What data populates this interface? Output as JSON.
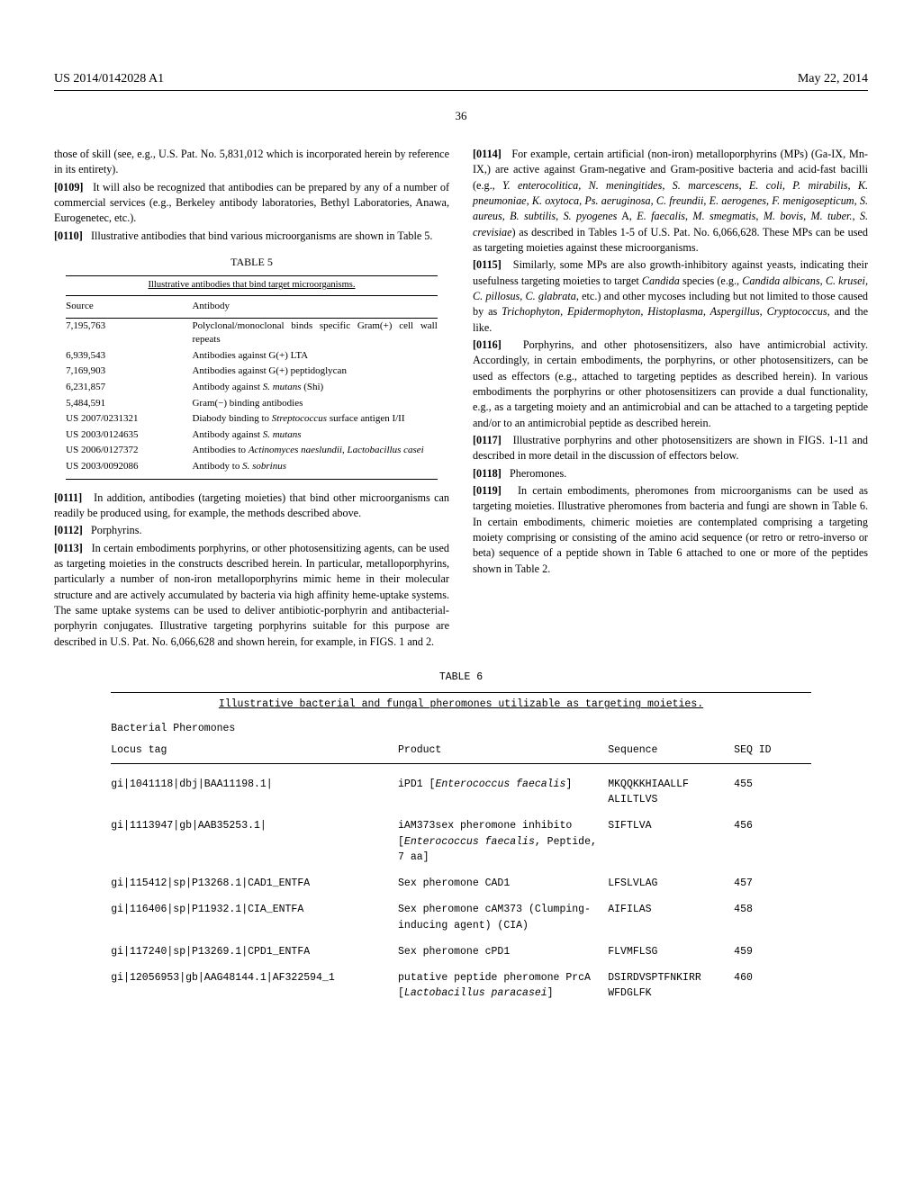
{
  "header": {
    "left": "US 2014/0142028 A1",
    "right": "May 22, 2014"
  },
  "page_number": "36",
  "left_col": {
    "p_intro": "those of skill (see, e.g., U.S. Pat. No. 5,831,012 which is incorporated herein by reference in its entirety).",
    "p0109_num": "[0109]",
    "p0109": "It will also be recognized that antibodies can be prepared by any of a number of commercial services (e.g., Berkeley antibody laboratories, Bethyl Laboratories, Anawa, Eurogenetec, etc.).",
    "p0110_num": "[0110]",
    "p0110": "Illustrative antibodies that bind various microorganisms are shown in Table 5.",
    "table5_caption": "TABLE 5",
    "table5_title": "Illustrative antibodies that bind target microorganisms.",
    "table5_head_c1": "Source",
    "table5_head_c2": "Antibody",
    "table5_rows": [
      {
        "c1": "7,195,763",
        "c2": "Polyclonal/monoclonal binds specific Gram(+) cell wall repeats"
      },
      {
        "c1": "6,939,543",
        "c2": "Antibodies against G(+) LTA"
      },
      {
        "c1": "7,169,903",
        "c2": "Antibodies against G(+) peptidoglycan"
      },
      {
        "c1": "6,231,857",
        "c2": "Antibody against S. mutans (Shi)",
        "italic": "S. mutans"
      },
      {
        "c1": "5,484,591",
        "c2": "Gram(−) binding antibodies"
      },
      {
        "c1": "US 2007/0231321",
        "c2": "Diabody binding to Streptococcus surface antigen I/II",
        "italic": "Streptococcus"
      },
      {
        "c1": "US 2003/0124635",
        "c2": "Antibody against S. mutans",
        "italic": "S. mutans"
      },
      {
        "c1": "US 2006/0127372",
        "c2": "Antibodies to Actinomyces naeslundii, Lactobacillus casei",
        "italic": "Actinomyces naeslundii, Lactobacillus casei"
      },
      {
        "c1": "US 2003/0092086",
        "c2": "Antibody to S. sobrinus",
        "italic": "S. sobrinus"
      }
    ],
    "p0111_num": "[0111]",
    "p0111": "In addition, antibodies (targeting moieties) that bind other microorganisms can readily be produced using, for example, the methods described above.",
    "p0112_num": "[0112]",
    "p0112": "Porphyrins.",
    "p0113_num": "[0113]",
    "p0113": "In certain embodiments porphyrins, or other photosensitizing agents, can be used as targeting moieties in the constructs described herein. In particular, metalloporphyrins, particularly a number of non-iron metalloporphyrins mimic heme in their molecular structure and are actively accumulated by bacteria via high affinity heme-uptake systems. The same uptake systems can be used to deliver antibiotic-porphyrin and antibacterial-porphyrin conjugates. Illustrative targeting porphyrins suitable for this purpose are described in U.S. Pat. No. 6,066,628 and shown herein, for example, in FIGS. 1 and 2."
  },
  "right_col": {
    "p0114_num": "[0114]",
    "p0114_a": "For example, certain artificial (non-iron) metalloporphyrins (MPs) (Ga-IX, Mn-IX,) are active against Gram-negative and Gram-positive bacteria and acid-fast bacilli (e.g., ",
    "p0114_italic": "Y. enterocolitica, N. meningitides, S. marcescens, E. coli, P. mirabilis, K. pneumoniae, K. oxytoca, Ps. aeruginosa, C. freundii, E. aerogenes, F. menigosepticum, S. aureus, B. subtilis, S. pyogenes",
    "p0114_mid": " A, ",
    "p0114_italic2": "E. faecalis, M. smegmatis, M. bovis, M. tuber., S. crevisiae",
    "p0114_b": ") as described in Tables 1-5 of U.S. Pat. No. 6,066,628. These MPs can be used as targeting moieties against these microorganisms.",
    "p0115_num": "[0115]",
    "p0115_a": "Similarly, some MPs are also growth-inhibitory against yeasts, indicating their usefulness targeting moieties to target ",
    "p0115_italic1": "Candida",
    "p0115_mid1": " species (e.g., ",
    "p0115_italic2": "Candida albicans, C. krusei, C. pillosus, C. glabrata",
    "p0115_mid2": ", etc.) and other mycoses including but not limited to those caused by as ",
    "p0115_italic3": "Trichophyton, Epidermophyton, Histoplasma, Aspergillus, Cryptococcus",
    "p0115_b": ", and the like.",
    "p0116_num": "[0116]",
    "p0116": "Porphyrins, and other photosensitizers, also have antimicrobial activity. Accordingly, in certain embodiments, the porphyrins, or other photosensitizers, can be used as effectors (e.g., attached to targeting peptides as described herein). In various embodiments the porphyrins or other photosensitizers can provide a dual functionality, e.g., as a targeting moiety and an antimicrobial and can be attached to a targeting peptide and/or to an antimicrobial peptide as described herein.",
    "p0117_num": "[0117]",
    "p0117": "Illustrative porphyrins and other photosensitizers are shown in FIGS. 1-11 and described in more detail in the discussion of effectors below.",
    "p0118_num": "[0118]",
    "p0118": "Pheromones.",
    "p0119_num": "[0119]",
    "p0119": "In certain embodiments, pheromones from microorganisms can be used as targeting moieties. Illustrative pheromones from bacteria and fungi are shown in Table 6. In certain embodiments, chimeric moieties are contemplated comprising a targeting moiety comprising or consisting of the amino acid sequence (or retro or retro-inverso or beta) sequence of a peptide shown in Table 6 attached to one or more of the peptides shown in Table 2."
  },
  "table6": {
    "caption": "TABLE 6",
    "title": "Illustrative bacterial and fungal pheromones utilizable as targeting moieties.",
    "subhead1": "Bacterial Pheromones",
    "head_c1": "Locus tag",
    "head_c2": "Product",
    "head_c3": "Sequence",
    "head_c4": "SEQ ID",
    "rows": [
      {
        "c1": "gi|1041118|dbj|BAA11198.1|",
        "c2a": "iPD1 [",
        "c2i": "Enterococcus faecalis",
        "c2b": "]",
        "c3": "MKQQKKHIAALLF ALILTLVS",
        "c4": "455"
      },
      {
        "c1": "gi|1113947|gb|AAB35253.1|",
        "c2a": "iAM373sex pheromone inhibito [",
        "c2i": "Enterococcus faecalis",
        "c2b": ", Peptide, 7 aa]",
        "c3": "SIFTLVA",
        "c4": "456"
      },
      {
        "c1": "gi|115412|sp|P13268.1|CAD1_ENTFA",
        "c2a": "Sex pheromone CAD1",
        "c2i": "",
        "c2b": "",
        "c3": "LFSLVLAG",
        "c4": "457"
      },
      {
        "c1": "gi|116406|sp|P11932.1|CIA_ENTFA",
        "c2a": "Sex pheromone cAM373 (Clumping-inducing agent) (CIA)",
        "c2i": "",
        "c2b": "",
        "c3": "AIFILAS",
        "c4": "458"
      },
      {
        "c1": "gi|117240|sp|P13269.1|CPD1_ENTFA",
        "c2a": "Sex pheromone cPD1",
        "c2i": "",
        "c2b": "",
        "c3": "FLVMFLSG",
        "c4": "459"
      },
      {
        "c1": "gi|12056953|gb|AAG48144.1|AF322594_1",
        "c2a": "putative peptide pheromone PrcA [",
        "c2i": "Lactobacillus paracasei",
        "c2b": "]",
        "c3": "DSIRDVSPTFNKIRR WFDGLFK",
        "c4": "460"
      }
    ]
  }
}
